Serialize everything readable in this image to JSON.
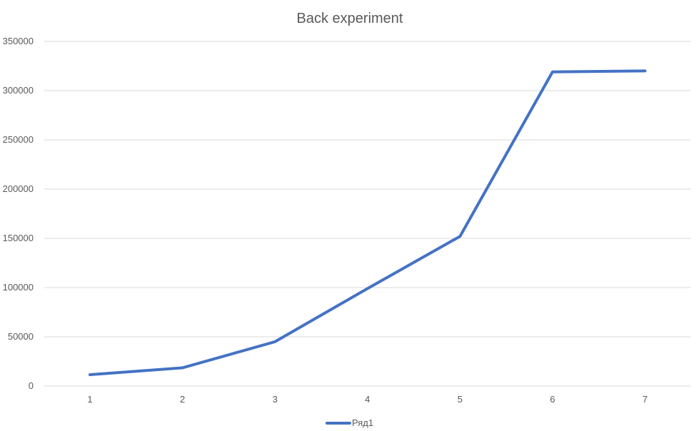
{
  "chart_data": {
    "type": "line",
    "title": "Back experiment",
    "xlabel": "",
    "ylabel": "",
    "categories": [
      "1",
      "2",
      "3",
      "4",
      "5",
      "6",
      "7"
    ],
    "yticks": [
      "0",
      "50000",
      "100000",
      "150000",
      "200000",
      "250000",
      "300000",
      "350000"
    ],
    "ylim": [
      0,
      350000
    ],
    "grid": true,
    "legend": "bottom",
    "series": [
      {
        "name": "Ряд1",
        "color": "#4472c4",
        "values": [
          11500,
          18500,
          45000,
          99000,
          152000,
          319000,
          320000
        ]
      }
    ]
  }
}
